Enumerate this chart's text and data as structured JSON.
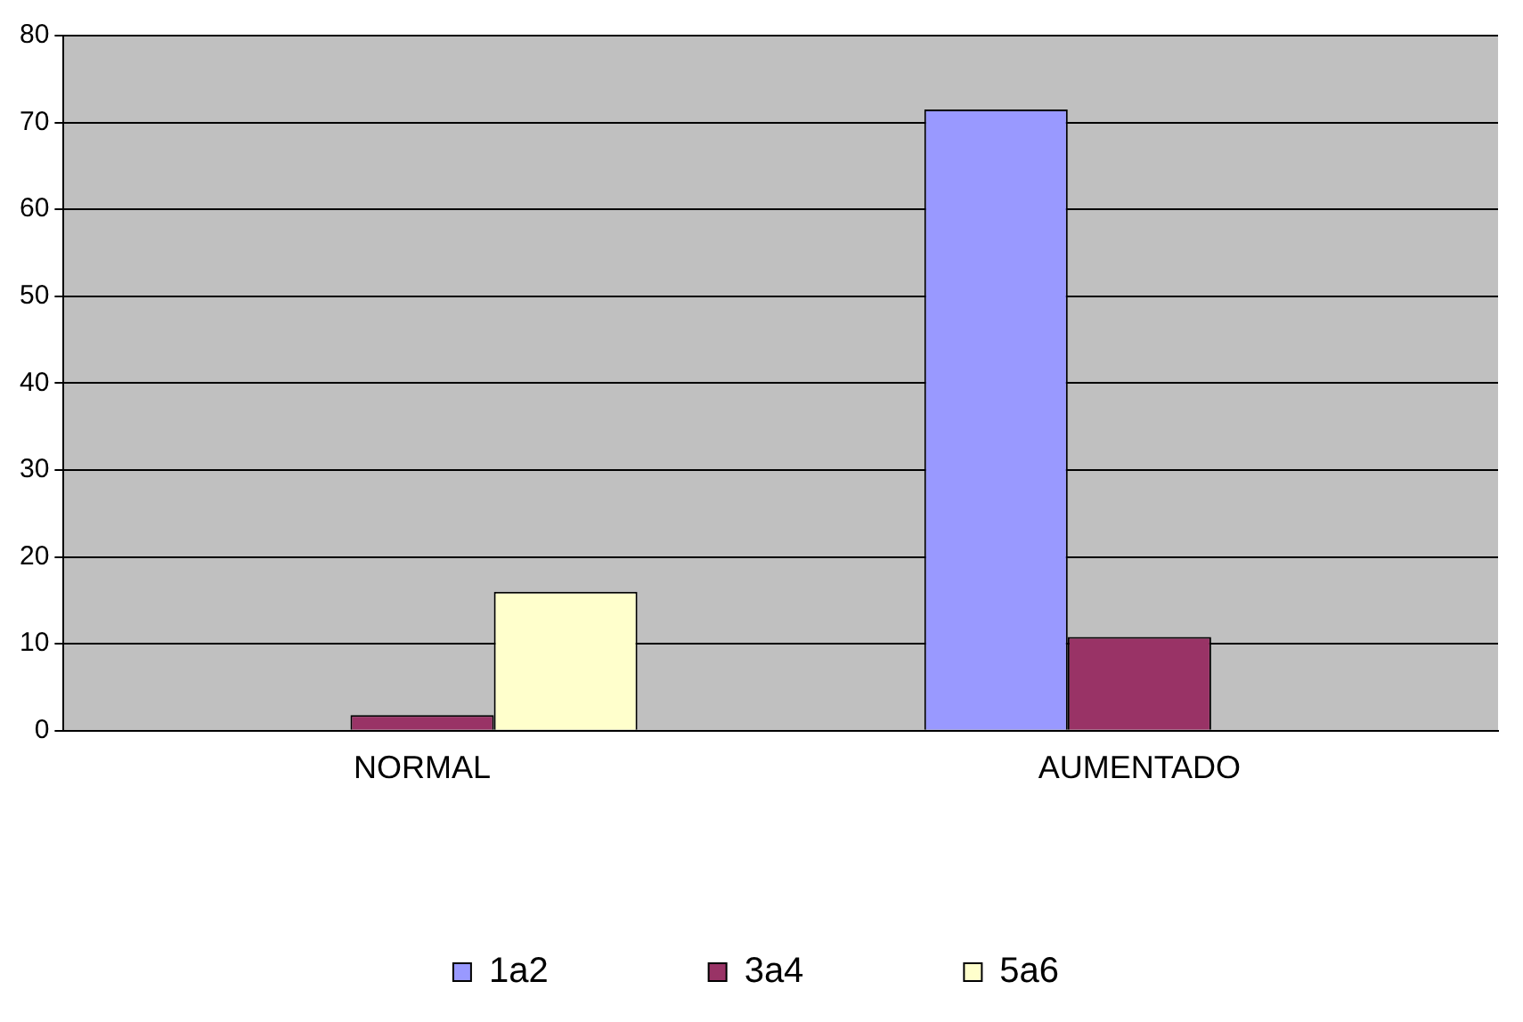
{
  "chart_data": {
    "type": "bar",
    "categories": [
      "NORMAL",
      "AUMENTADO"
    ],
    "series": [
      {
        "name": "1a2",
        "color": "#9999ff",
        "values": [
          0,
          71.5
        ]
      },
      {
        "name": "3a4",
        "color": "#993366",
        "values": [
          1.8,
          10.8
        ]
      },
      {
        "name": "5a6",
        "color": "#ffffcc",
        "values": [
          16,
          0
        ]
      }
    ],
    "ylim": [
      0,
      80
    ],
    "yticks": [
      0,
      10,
      20,
      30,
      40,
      50,
      60,
      70,
      80
    ],
    "grid": "y",
    "legend": "bottom"
  }
}
